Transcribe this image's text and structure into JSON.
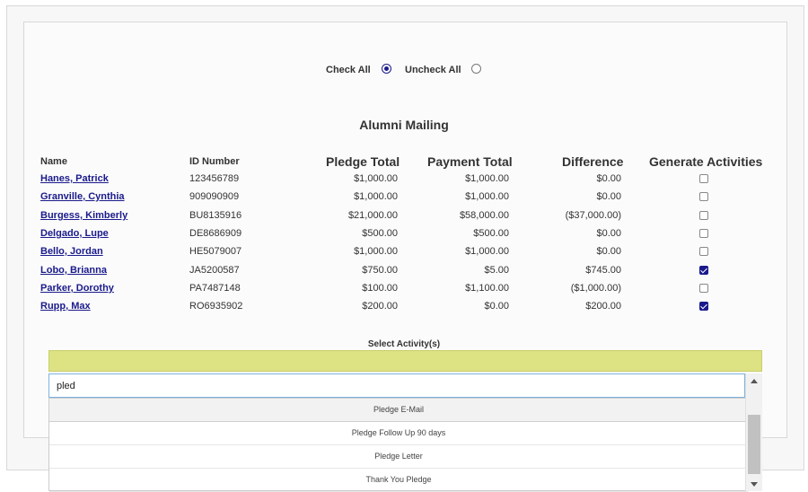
{
  "check": {
    "check_all_label": "Check All",
    "check_all_selected": true,
    "uncheck_all_label": "Uncheck All"
  },
  "title": "Alumni Mailing",
  "headers": {
    "name": "Name",
    "id": "ID Number",
    "pledge": "Pledge Total",
    "payment": "Payment Total",
    "difference": "Difference",
    "generate": "Generate Activities"
  },
  "rows": [
    {
      "name": "Hanes, Patrick",
      "id": "123456789",
      "pledge": "$1,000.00",
      "payment": "$1,000.00",
      "difference": "$0.00",
      "generate": false
    },
    {
      "name": "Granville, Cynthia",
      "id": "909090909",
      "pledge": "$1,000.00",
      "payment": "$1,000.00",
      "difference": "$0.00",
      "generate": false
    },
    {
      "name": "Burgess, Kimberly",
      "id": "BU8135916",
      "pledge": "$21,000.00",
      "payment": "$58,000.00",
      "difference": "($37,000.00)",
      "generate": false
    },
    {
      "name": "Delgado, Lupe",
      "id": "DE8686909",
      "pledge": "$500.00",
      "payment": "$500.00",
      "difference": "$0.00",
      "generate": false
    },
    {
      "name": "Bello, Jordan",
      "id": "HE5079007",
      "pledge": "$1,000.00",
      "payment": "$1,000.00",
      "difference": "$0.00",
      "generate": false
    },
    {
      "name": "Lobo, Brianna",
      "id": "JA5200587",
      "pledge": "$750.00",
      "payment": "$5.00",
      "difference": "$745.00",
      "generate": true
    },
    {
      "name": "Parker, Dorothy",
      "id": "PA7487148",
      "pledge": "$100.00",
      "payment": "$1,100.00",
      "difference": "($1,000.00)",
      "generate": false
    },
    {
      "name": "Rupp, Max",
      "id": "RO6935902",
      "pledge": "$200.00",
      "payment": "$0.00",
      "difference": "$200.00",
      "generate": true
    }
  ],
  "select_activity": {
    "label": "Select Activity(s)",
    "search_value": "pled",
    "options": [
      "Pledge E-Mail",
      "Pledge Follow Up 90 days",
      "Pledge Letter",
      "Thank You Pledge"
    ],
    "active_index": 0,
    "selected_bar_color": "#dde283"
  }
}
